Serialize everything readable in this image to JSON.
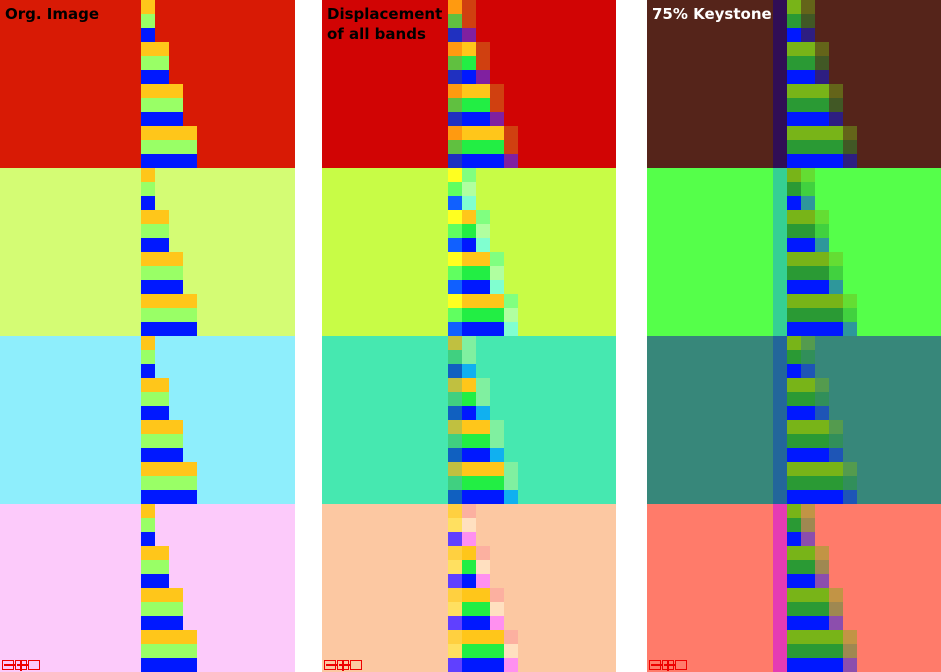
{
  "panels": [
    {
      "title": [
        "Org. Image"
      ]
    },
    {
      "title": [
        "Displacement",
        "of all bands"
      ]
    },
    {
      "title": [
        "75% Keystone"
      ]
    }
  ]
}
